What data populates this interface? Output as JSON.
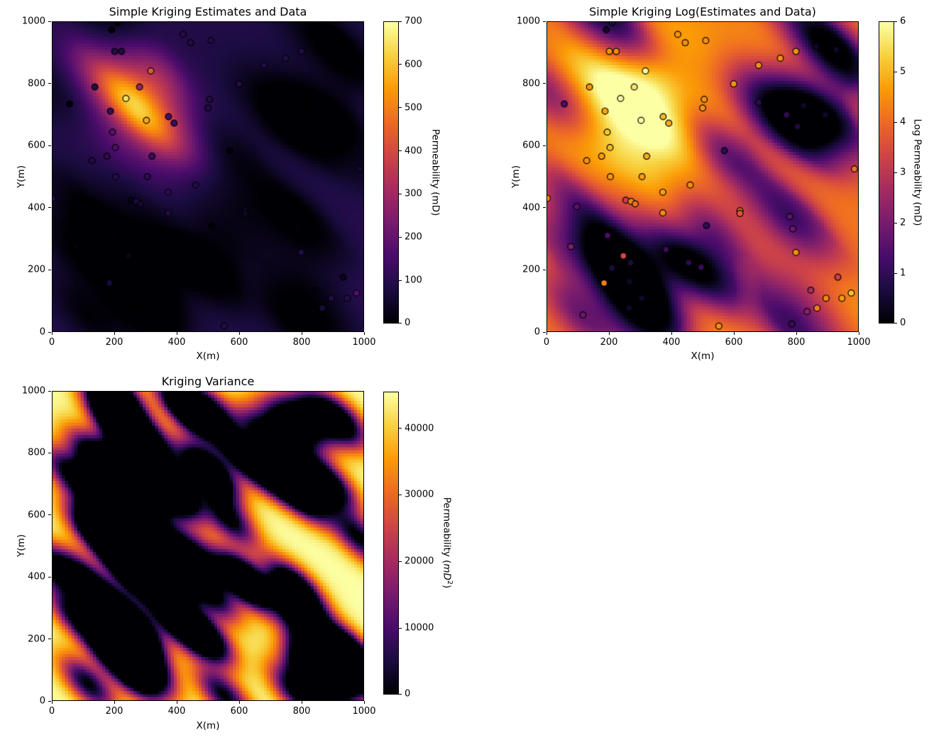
{
  "chart_data": {
    "type": "heatmap",
    "figure_background": "#ffffff",
    "colormap": {
      "name": "inferno",
      "stops": [
        "#000004",
        "#1b0c41",
        "#4a0c6b",
        "#781c6d",
        "#a52c60",
        "#cf4446",
        "#ed6925",
        "#fb9b06",
        "#f7d13d",
        "#fcffa4"
      ]
    },
    "marker_edge_color": "#000000",
    "subplots": [
      {
        "title": "Simple Kriging Estimates and Data",
        "xlabel": "X(m)",
        "ylabel": "Y(m)",
        "xlim": [
          0,
          1000
        ],
        "ylim": [
          0,
          1000
        ],
        "xticks": [
          0,
          200,
          400,
          600,
          800,
          1000
        ],
        "yticks": [
          0,
          200,
          400,
          600,
          800,
          1000
        ],
        "field": "perm",
        "mean": 95,
        "vmin": 0,
        "vmax": 700,
        "kernel": {
          "major_sigma": 115,
          "minor_sigma": 50,
          "azimuth_deg": -45
        },
        "show_points": true,
        "colorbar": {
          "ticks": [
            0,
            100,
            200,
            300,
            400,
            500,
            600,
            700
          ],
          "vmin": 0,
          "vmax": 700,
          "label_prefix": "Permeability (mD)",
          "label_italic": "",
          "label_sup": "",
          "label_suffix": ""
        }
      },
      {
        "title": "Simple Kriging Log(Estimates and Data)",
        "xlabel": "X(m)",
        "ylabel": "Y(m)",
        "xlim": [
          0,
          1000
        ],
        "ylim": [
          0,
          1000
        ],
        "xticks": [
          0,
          200,
          400,
          600,
          800,
          1000
        ],
        "yticks": [
          0,
          200,
          400,
          600,
          800,
          1000
        ],
        "field": "log",
        "mean": 4.2,
        "vmin": 0,
        "vmax": 6,
        "kernel": {
          "major_sigma": 115,
          "minor_sigma": 50,
          "azimuth_deg": -45
        },
        "show_points": true,
        "colorbar": {
          "ticks": [
            0,
            1,
            2,
            3,
            4,
            5,
            6
          ],
          "vmin": 0,
          "vmax": 6,
          "label_prefix": "Log Permeability (mD)",
          "label_italic": "",
          "label_sup": "",
          "label_suffix": ""
        }
      },
      {
        "title": "Kriging Variance",
        "xlabel": "X(m)",
        "ylabel": "Y(m)",
        "xlim": [
          0,
          1000
        ],
        "ylim": [
          0,
          1000
        ],
        "xticks": [
          0,
          200,
          400,
          600,
          800,
          1000
        ],
        "yticks": [
          0,
          200,
          400,
          600,
          800,
          1000
        ],
        "field": "variance",
        "sill": 45500,
        "vmin": 0,
        "vmax": 45500,
        "kernel": {
          "major_sigma": 80,
          "minor_sigma": 35,
          "azimuth_deg": -45
        },
        "show_points": false,
        "colorbar": {
          "ticks": [
            0,
            10000,
            20000,
            30000,
            40000
          ],
          "vmin": 0,
          "vmax": 45500,
          "label_prefix": "Permeability (",
          "label_italic": "mD",
          "label_sup": "2",
          "label_suffix": ")"
        }
      }
    ],
    "samples": {
      "x": [
        209,
        190,
        200,
        222,
        420,
        444,
        510,
        136,
        280,
        316,
        236,
        55,
        186,
        302,
        373,
        391,
        193,
        202,
        175,
        127,
        320,
        203,
        305,
        865,
        930,
        800,
        750,
        680,
        600,
        505,
        500,
        680,
        770,
        825,
        895,
        805,
        570,
        988,
        0,
        95,
        76,
        115,
        194,
        253,
        270,
        283,
        372,
        372,
        245,
        268,
        208,
        183,
        264,
        304,
        263,
        382,
        455,
        495,
        512,
        460,
        620,
        620,
        780,
        790,
        800,
        935,
        848,
        836,
        868,
        897,
        948,
        978,
        787,
        552
      ],
      "y": [
        998,
        975,
        905,
        905,
        960,
        933,
        940,
        790,
        790,
        842,
        753,
        735,
        712,
        682,
        694,
        673,
        644,
        594,
        566,
        552,
        566,
        500,
        500,
        920,
        910,
        905,
        883,
        860,
        800,
        750,
        722,
        740,
        700,
        730,
        700,
        662,
        584,
        525,
        430,
        403,
        274,
        53,
        310,
        424,
        420,
        412,
        450,
        383,
        244,
        222,
        205,
        156,
        161,
        107,
        75,
        265,
        222,
        207,
        342,
        473,
        390,
        381,
        371,
        331,
        255,
        175,
        133,
        64,
        75,
        107,
        107,
        124,
        24,
        17
      ],
      "perm": [
        2,
        1.5,
        90,
        85,
        95,
        90,
        90,
        95,
        280,
        430,
        650,
        4,
        120,
        560,
        150,
        130,
        180,
        160,
        110,
        90,
        130,
        100,
        110,
        1.5,
        1.5,
        90,
        90,
        90,
        95,
        90,
        90,
        2.5,
        2.5,
        1.5,
        1.5,
        2,
        2.5,
        60,
        90,
        5,
        8,
        6,
        4,
        25,
        80,
        60,
        110,
        90,
        30,
        2,
        2,
        70,
        1.5,
        1.5,
        1.5,
        3,
        2.5,
        3,
        2.5,
        90,
        50,
        40,
        5,
        6,
        90,
        25,
        15,
        10,
        70,
        80,
        100,
        170,
        3,
        90
      ]
    }
  }
}
